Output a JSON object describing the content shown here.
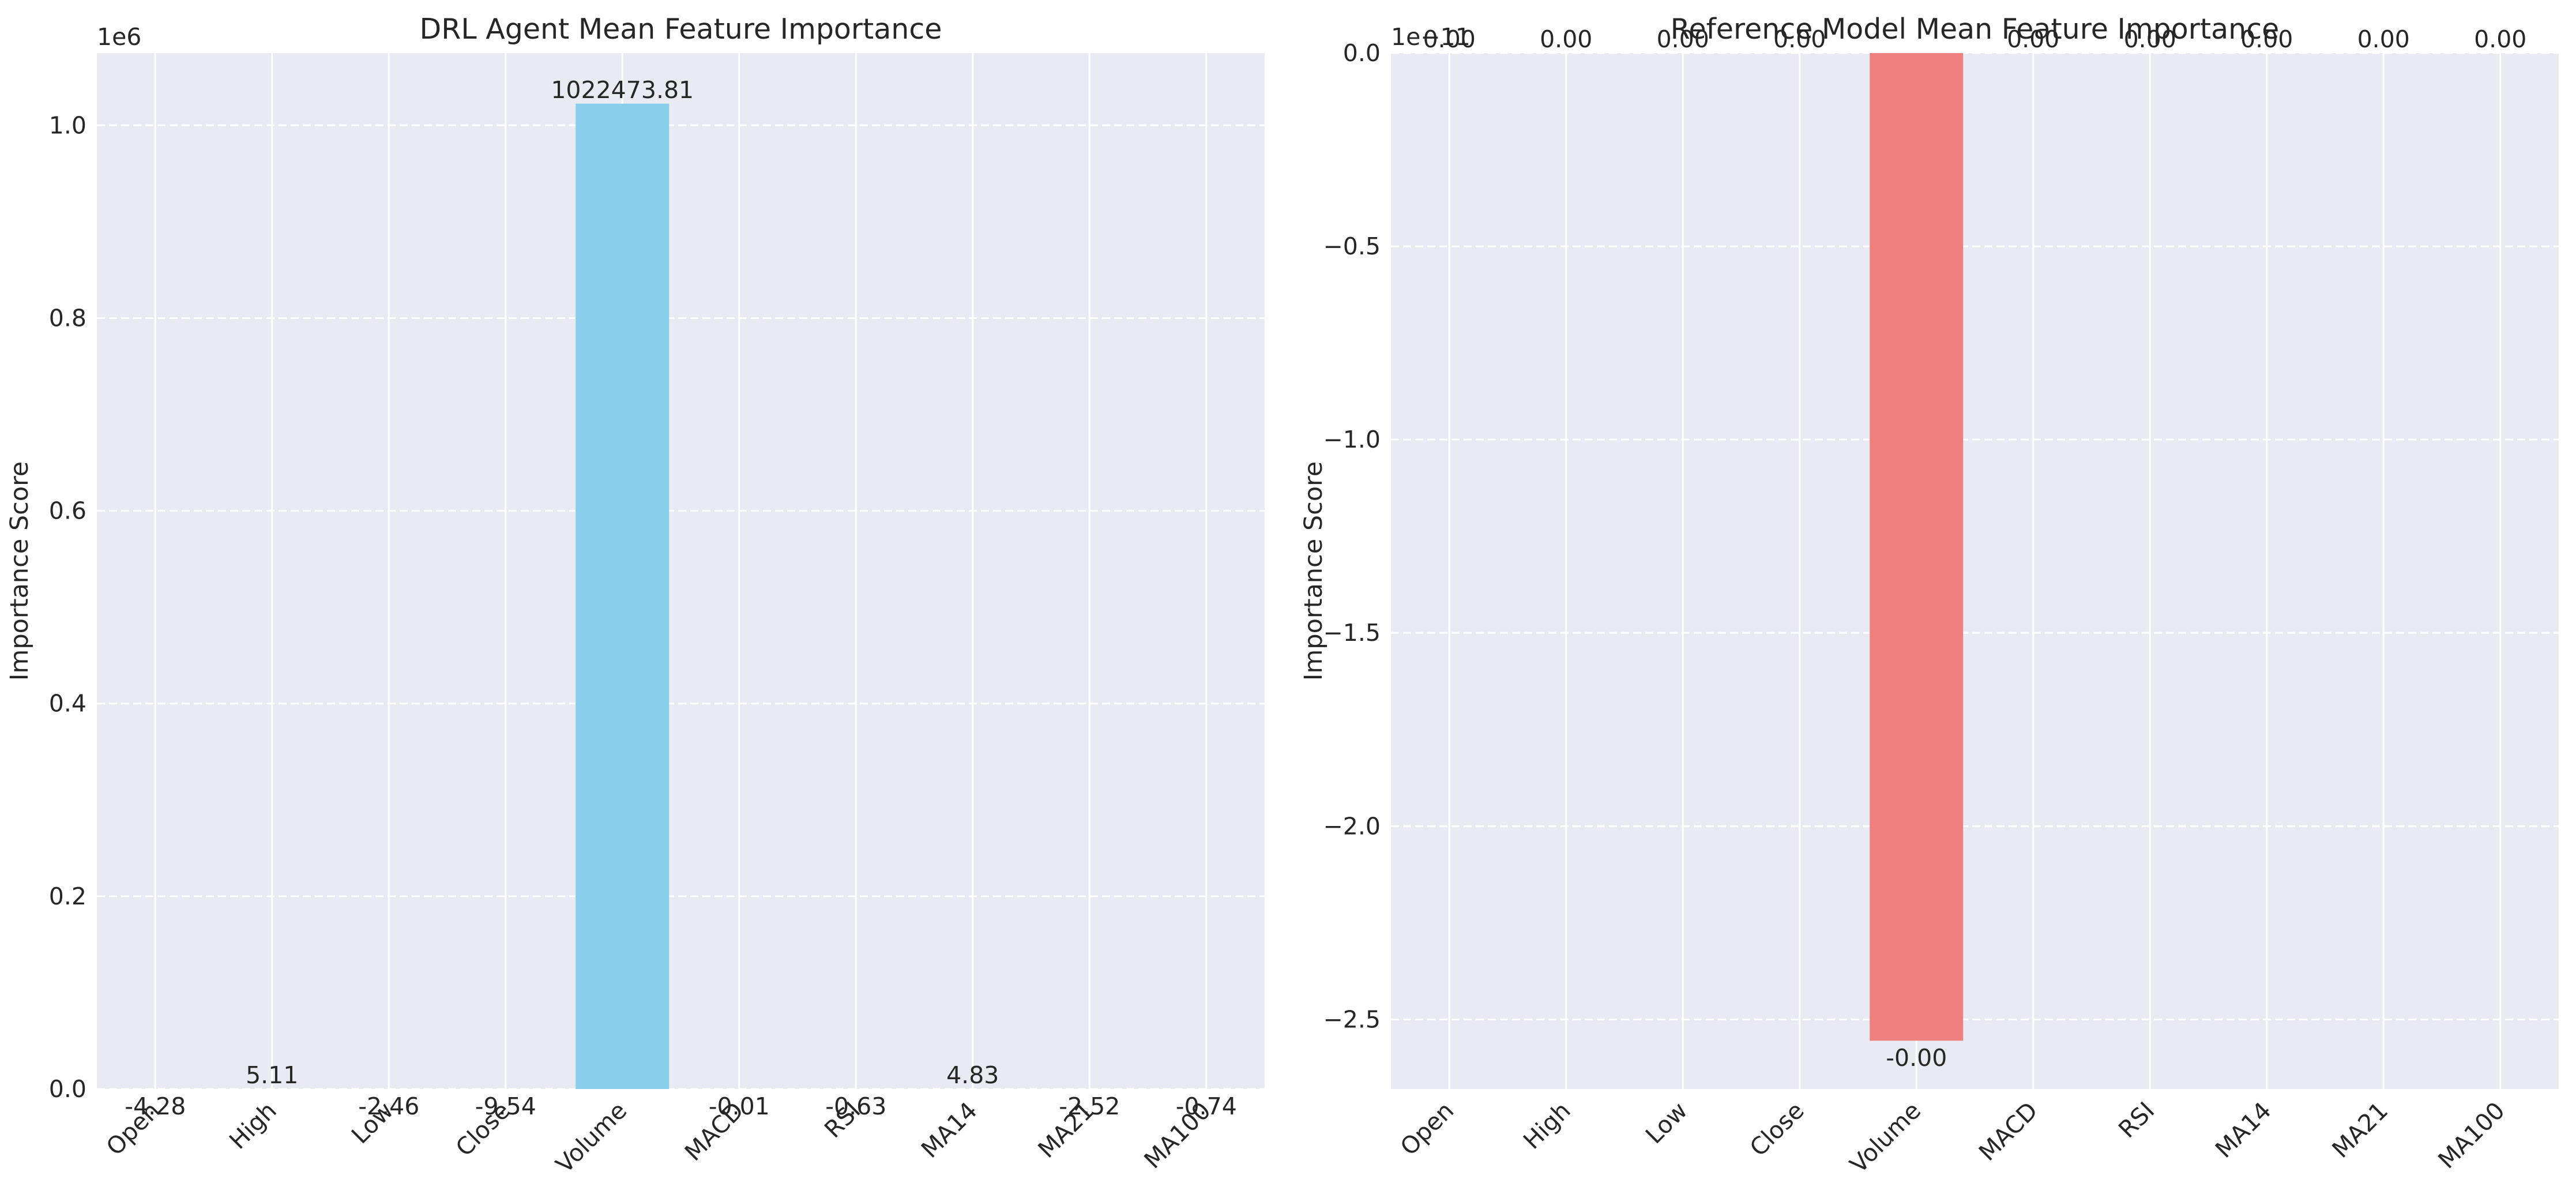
{
  "colors": {
    "plot_background": "#EAEAF2",
    "grid": "#FFFFFF",
    "left_bars": "#87CEEB",
    "right_bars": "#F08080",
    "text": "#262626"
  },
  "chart_data": [
    {
      "type": "bar",
      "title": "DRL Agent Mean Feature Importance",
      "xlabel": "",
      "ylabel": "Importance Score",
      "categories": [
        "Open",
        "High",
        "Low",
        "Close",
        "Volume",
        "MACD",
        "RSI",
        "MA14",
        "MA21",
        "MA100"
      ],
      "values": [
        -4.28,
        5.11,
        -2.46,
        -9.54,
        1022473.81,
        -0.01,
        -0.63,
        4.83,
        -2.52,
        -0.74
      ],
      "data_labels": [
        "-4.28",
        "5.11",
        "-2.46",
        "-9.54",
        "1022473.81",
        "-0.01",
        "-0.63",
        "4.83",
        "-2.52",
        "-0.74"
      ],
      "ylim": [
        0,
        1075000
      ],
      "yticks": [
        0,
        200000,
        400000,
        600000,
        800000,
        1000000
      ],
      "ytick_labels": [
        "0.0",
        "0.2",
        "0.4",
        "0.6",
        "0.8",
        "1.0"
      ],
      "offset_text": "1e6",
      "xtick_rotation": 45,
      "grid": true,
      "bar_color": "#87CEEB"
    },
    {
      "type": "bar",
      "title": "Reference Model Mean Feature Importance",
      "xlabel": "",
      "ylabel": "Importance Score",
      "categories": [
        "Open",
        "High",
        "Low",
        "Close",
        "Volume",
        "MACD",
        "RSI",
        "MA14",
        "MA21",
        "MA100"
      ],
      "values": [
        0,
        0,
        0,
        0,
        -2.555e-11,
        0,
        0,
        0,
        0,
        0
      ],
      "data_labels": [
        "0.00",
        "0.00",
        "0.00",
        "0.00",
        "-0.00",
        "0.00",
        "0.00",
        "0.00",
        "0.00",
        "0.00"
      ],
      "ylim": [
        -2.68e-11,
        0
      ],
      "yticks": [
        0,
        -5e-12,
        -1e-11,
        -1.5e-11,
        -2e-11,
        -2.5e-11
      ],
      "ytick_labels": [
        "0.0",
        "−0.5",
        "−1.0",
        "−1.5",
        "−2.0",
        "−2.5"
      ],
      "offset_text": "1e−11",
      "xtick_rotation": 45,
      "grid": true,
      "bar_color": "#F08080"
    }
  ]
}
